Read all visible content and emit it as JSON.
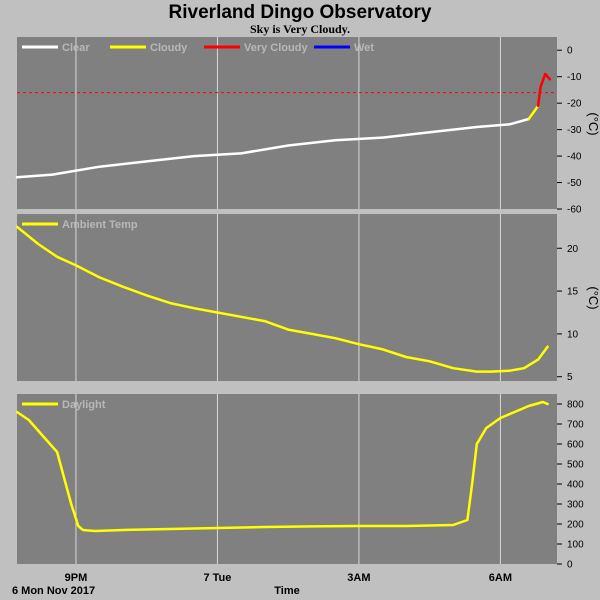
{
  "title": "Riverland Dingo Observatory",
  "subtitle": "Sky is Very Cloudy.",
  "x_axis_title": "Time",
  "date_label": "6 Mon Nov 2017",
  "chart_data": [
    {
      "type": "line",
      "ylabel": "(°C)",
      "ylim": [
        -60,
        5
      ],
      "yticks": [
        0,
        -10,
        -20,
        -30,
        -40,
        -50,
        -60
      ],
      "threshold": -16,
      "x_ticks": [
        "9PM",
        "7 Tue",
        "3AM",
        "6AM"
      ],
      "legend": [
        {
          "name": "Clear",
          "color": "#ffffff"
        },
        {
          "name": "Cloudy",
          "color": "#ffff00"
        },
        {
          "name": "Very Cloudy",
          "color": "#ff0000"
        },
        {
          "name": "Wet",
          "color": "#0000ff"
        }
      ],
      "series": [
        {
          "name": "Clear",
          "color": "#ffffff",
          "x": [
            19.75,
            20.5,
            21.5,
            22.5,
            23.5,
            24.5,
            25.5,
            26.5,
            27.5,
            28.5,
            29.5,
            30.2,
            30.6
          ],
          "y": [
            -48,
            -47,
            -44,
            -42,
            -40,
            -39,
            -36,
            -34,
            -33,
            -31,
            -29,
            -28,
            -26
          ]
        },
        {
          "name": "Cloudy",
          "color": "#ffff00",
          "x": [
            30.6,
            30.72,
            30.8
          ],
          "y": [
            -26,
            -23,
            -21
          ]
        },
        {
          "name": "Very Cloudy",
          "color": "#ff0000",
          "x": [
            30.8,
            30.85,
            30.95,
            31.05
          ],
          "y": [
            -21,
            -14,
            -9,
            -11
          ]
        }
      ]
    },
    {
      "type": "line",
      "ylabel": "(°C)",
      "ylim": [
        4.5,
        24
      ],
      "yticks": [
        20,
        15,
        10,
        5
      ],
      "x_ticks": [
        "9PM",
        "7 Tue",
        "3AM",
        "6AM"
      ],
      "legend": [
        {
          "name": "Ambient Temp",
          "color": "#ffff00"
        }
      ],
      "series": [
        {
          "name": "Ambient Temp",
          "color": "#ffff00",
          "x": [
            19.75,
            20.2,
            20.6,
            21.0,
            21.5,
            22.0,
            22.5,
            23.0,
            23.5,
            24.0,
            24.5,
            25.0,
            25.5,
            26.0,
            26.5,
            27.0,
            27.5,
            28.0,
            28.5,
            29.0,
            29.5,
            29.8,
            30.2,
            30.5,
            30.8,
            31.0
          ],
          "y": [
            22.5,
            20.5,
            19.0,
            18.0,
            16.6,
            15.5,
            14.5,
            13.6,
            13.0,
            12.5,
            12.0,
            11.5,
            10.5,
            10.0,
            9.5,
            8.8,
            8.2,
            7.3,
            6.8,
            6.0,
            5.6,
            5.6,
            5.7,
            6.0,
            7.0,
            8.5
          ]
        }
      ]
    },
    {
      "type": "line",
      "ylim": [
        0,
        850
      ],
      "yticks": [
        800,
        700,
        600,
        500,
        400,
        300,
        200,
        100,
        0
      ],
      "x_ticks": [
        "9PM",
        "7 Tue",
        "3AM",
        "6AM"
      ],
      "legend": [
        {
          "name": "Daylight",
          "color": "#ffff00"
        }
      ],
      "series": [
        {
          "name": "Daylight",
          "color": "#ffff00",
          "x": [
            19.75,
            20.0,
            20.3,
            20.6,
            20.9,
            21.05,
            21.15,
            21.4,
            22.0,
            23.0,
            24.0,
            25.0,
            26.0,
            27.0,
            28.0,
            29.0,
            29.3,
            29.4,
            29.5,
            29.7,
            30.0,
            30.3,
            30.6,
            30.75,
            30.9,
            31.0
          ],
          "y": [
            760,
            720,
            640,
            560,
            300,
            190,
            170,
            165,
            170,
            175,
            180,
            185,
            188,
            190,
            190,
            195,
            220,
            400,
            600,
            680,
            730,
            760,
            790,
            800,
            810,
            800
          ]
        }
      ]
    }
  ]
}
